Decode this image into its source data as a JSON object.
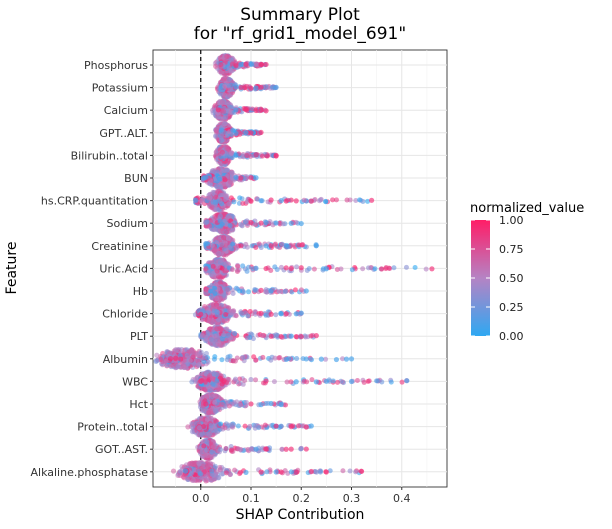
{
  "chart_data": {
    "type": "scatter",
    "subtype": "shap-summary",
    "title_line1": "Summary Plot",
    "title_line2": "for \"rf_grid1_model_691\"",
    "xlabel": "SHAP Contribution",
    "ylabel": "Feature",
    "xlim": [
      -0.095,
      0.49
    ],
    "x_ticks": [
      0.0,
      0.1,
      0.2,
      0.3,
      0.4
    ],
    "x_tick_labels": [
      "0.0",
      "0.1",
      "0.2",
      "0.3",
      "0.4"
    ],
    "reference_line_x": 0.0,
    "grid": true,
    "legend": {
      "title": "normalized_value",
      "position": "right",
      "ticks": [
        "1.00",
        "0.75",
        "0.50",
        "0.25",
        "0.00"
      ],
      "low_color": "#2ea8f2",
      "mid_color": "#b583c4",
      "high_color": "#ff1d67"
    },
    "features": [
      {
        "name": "Phosphorus",
        "center": 0.05,
        "min": 0.04,
        "max": 0.13,
        "peak_spread": 0.012,
        "highs": [
          0.07,
          0.09,
          0.12,
          0.13
        ],
        "lows": [
          0.08,
          0.1
        ]
      },
      {
        "name": "Potassium",
        "center": 0.05,
        "min": 0.04,
        "max": 0.15,
        "peak_spread": 0.01,
        "highs": [
          0.08,
          0.1,
          0.12
        ],
        "lows": [
          0.07,
          0.11,
          0.15
        ]
      },
      {
        "name": "Calcium",
        "center": 0.045,
        "min": 0.035,
        "max": 0.13,
        "peak_spread": 0.012,
        "highs": [
          0.09,
          0.11,
          0.12,
          0.13
        ],
        "lows": [
          0.07
        ]
      },
      {
        "name": "GPT..ALT.",
        "center": 0.045,
        "min": 0.04,
        "max": 0.12,
        "peak_spread": 0.01,
        "highs": [
          0.1,
          0.12
        ],
        "lows": [
          0.07,
          0.09
        ]
      },
      {
        "name": "Bilirubin..total",
        "center": 0.045,
        "min": 0.04,
        "max": 0.15,
        "peak_spread": 0.01,
        "highs": [
          0.15,
          0.15,
          0.11
        ],
        "lows": [
          0.07
        ]
      },
      {
        "name": "BUN",
        "center": 0.04,
        "min": 0.005,
        "max": 0.11,
        "peak_spread": 0.018,
        "highs": [
          0.08,
          0.1
        ],
        "lows": [
          0.01,
          0.07,
          0.11
        ]
      },
      {
        "name": "hs.CRP.quantitation",
        "center": 0.035,
        "min": -0.01,
        "max": 0.34,
        "peak_spread": 0.015,
        "highs": [
          0.1,
          0.14,
          0.17,
          0.18,
          0.19,
          0.22,
          0.34
        ],
        "lows": [
          -0.01,
          0.12,
          0.16
        ]
      },
      {
        "name": "Sodium",
        "center": 0.045,
        "min": 0.01,
        "max": 0.2,
        "peak_spread": 0.018,
        "highs": [
          0.1,
          0.12
        ],
        "lows": [
          0.13,
          0.15,
          0.18,
          0.2
        ]
      },
      {
        "name": "Creatinine",
        "center": 0.045,
        "min": 0.01,
        "max": 0.23,
        "peak_spread": 0.015,
        "highs": [
          0.08,
          0.14
        ],
        "lows": [
          0.13,
          0.23
        ]
      },
      {
        "name": "Uric.Acid",
        "center": 0.035,
        "min": 0.01,
        "max": 0.46,
        "peak_spread": 0.015,
        "highs": [
          0.13,
          0.17,
          0.18,
          0.2,
          0.36,
          0.46
        ],
        "lows": [
          0.11,
          0.25
        ]
      },
      {
        "name": "Hb",
        "center": 0.035,
        "min": 0.01,
        "max": 0.21,
        "peak_spread": 0.012,
        "highs": [
          0.12
        ],
        "lows": [
          0.14,
          0.21
        ]
      },
      {
        "name": "Chloride",
        "center": 0.03,
        "min": -0.005,
        "max": 0.2,
        "peak_spread": 0.022,
        "highs": [
          0.0,
          0.12,
          0.14,
          0.17
        ],
        "lows": [
          0.16,
          0.19,
          0.2
        ]
      },
      {
        "name": "PLT",
        "center": 0.035,
        "min": 0.0,
        "max": 0.23,
        "peak_spread": 0.018,
        "highs": [
          0.14,
          0.16,
          0.19,
          0.2,
          0.23
        ],
        "lows": [
          0.18
        ]
      },
      {
        "name": "Albumin",
        "center": -0.035,
        "min": -0.07,
        "max": 0.3,
        "peak_spread": 0.035,
        "highs": [
          -0.06,
          -0.05,
          -0.04
        ],
        "lows": [
          0.17,
          0.21,
          0.24,
          0.27,
          0.29,
          0.3
        ]
      },
      {
        "name": "WBC",
        "center": 0.02,
        "min": 0.0,
        "max": 0.41,
        "peak_spread": 0.02,
        "highs": [
          0.0,
          0.13
        ],
        "lows": [
          0.19,
          0.23,
          0.25,
          0.3,
          0.41
        ]
      },
      {
        "name": "Hct",
        "center": 0.02,
        "min": 0.005,
        "max": 0.17,
        "peak_spread": 0.015,
        "highs": [
          0.01,
          0.1
        ],
        "lows": [
          0.12,
          0.14,
          0.16
        ]
      },
      {
        "name": "Protein..total",
        "center": 0.01,
        "min": -0.005,
        "max": 0.22,
        "peak_spread": 0.02,
        "highs": [
          0.15,
          0.18,
          0.21
        ],
        "lows": [
          0.16,
          0.22
        ]
      },
      {
        "name": "GOT..AST.",
        "center": 0.015,
        "min": 0.0,
        "max": 0.21,
        "peak_spread": 0.012,
        "highs": [
          0.13,
          0.17,
          0.18,
          0.21
        ],
        "lows": [
          0.11
        ]
      },
      {
        "name": "Alkaline.phosphatase",
        "center": 0.0,
        "min": -0.03,
        "max": 0.32,
        "peak_spread": 0.03,
        "highs": [
          0.12,
          0.16,
          0.19,
          0.22,
          0.25,
          0.32
        ],
        "lows": [
          -0.03,
          0.09,
          0.15
        ]
      }
    ]
  }
}
